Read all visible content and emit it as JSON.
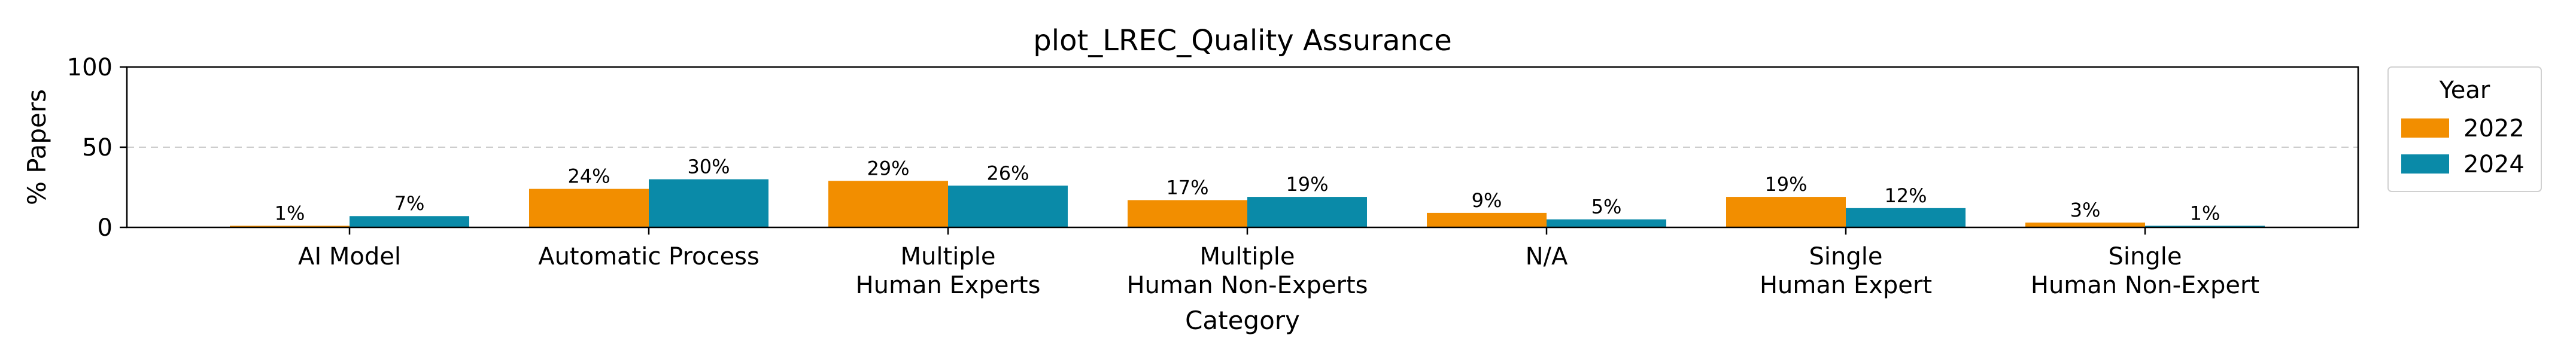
{
  "chart_data": {
    "type": "bar",
    "title": "plot_LREC_Quality Assurance",
    "xlabel": "Category",
    "ylabel": "% Papers",
    "ylim": [
      0,
      100
    ],
    "yticks": [
      "0",
      "50",
      "100"
    ],
    "grid": "y-dashed",
    "legend": {
      "title": "Year",
      "placement": "outside-right"
    },
    "categories": [
      [
        "AI Model"
      ],
      [
        "Automatic Process"
      ],
      [
        "Multiple",
        "Human Experts"
      ],
      [
        "Multiple",
        "Human Non-Experts"
      ],
      [
        "N/A"
      ],
      [
        "Single",
        "Human Expert"
      ],
      [
        "Single",
        "Human Non-Expert"
      ]
    ],
    "series": [
      {
        "name": "2022",
        "color": "#f28e00",
        "values": [
          1,
          24,
          29,
          17,
          9,
          19,
          3
        ],
        "labels": [
          "1%",
          "24%",
          "29%",
          "17%",
          "9%",
          "19%",
          "3%"
        ]
      },
      {
        "name": "2024",
        "color": "#0a8aa8",
        "values": [
          7,
          30,
          26,
          19,
          5,
          12,
          1
        ],
        "labels": [
          "7%",
          "30%",
          "26%",
          "19%",
          "5%",
          "12%",
          "1%"
        ]
      }
    ]
  }
}
